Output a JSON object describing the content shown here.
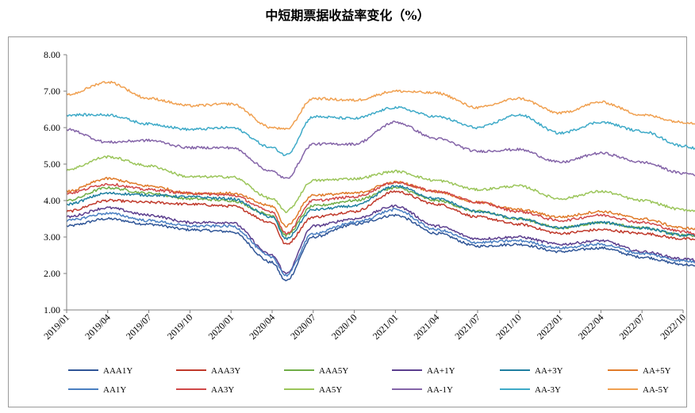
{
  "chart_data": {
    "type": "line",
    "title": "中短期票据收益率变化（%）",
    "xlabel": "",
    "ylabel": "",
    "ylim": [
      1.0,
      8.0
    ],
    "y_ticks": [
      "1.00",
      "2.00",
      "3.00",
      "4.00",
      "5.00",
      "6.00",
      "7.00",
      "8.00"
    ],
    "x_ticks": [
      "2019/01",
      "2019/04",
      "2019/07",
      "2019/10",
      "2020/01",
      "2020/04",
      "2020/07",
      "2020/10",
      "2021/01",
      "2021/04",
      "2021/07",
      "2021/10",
      "2022/01",
      "2022/04",
      "2022/07",
      "2022/10"
    ],
    "x": [
      "2019/01",
      "2019/04",
      "2019/07",
      "2019/10",
      "2020/01",
      "2020/04",
      "2020/05",
      "2020/07",
      "2020/10",
      "2021/01",
      "2021/04",
      "2021/07",
      "2021/10",
      "2022/01",
      "2022/04",
      "2022/07",
      "2022/10",
      "2022/12"
    ],
    "legend": "bottom",
    "grid": false,
    "series": [
      {
        "name": "AAA1Y",
        "color": "#2f5597",
        "values": [
          3.3,
          3.5,
          3.35,
          3.2,
          3.15,
          2.3,
          1.8,
          3.0,
          3.35,
          3.6,
          3.1,
          2.75,
          2.8,
          2.6,
          2.7,
          2.45,
          2.25,
          2.1
        ]
      },
      {
        "name": "AAA3Y",
        "color": "#c0392b",
        "values": [
          3.7,
          4.0,
          3.95,
          3.9,
          3.85,
          3.4,
          2.8,
          3.55,
          3.7,
          4.25,
          3.9,
          3.55,
          3.35,
          3.1,
          3.2,
          3.1,
          2.95,
          2.9
        ]
      },
      {
        "name": "AAA5Y",
        "color": "#70ad47",
        "values": [
          4.0,
          4.35,
          4.2,
          4.05,
          4.0,
          3.6,
          3.05,
          3.85,
          4.0,
          4.35,
          4.0,
          3.7,
          3.5,
          3.25,
          3.4,
          3.25,
          3.05,
          3.0
        ]
      },
      {
        "name": "AA+1Y",
        "color": "#5b3e8e",
        "values": [
          3.55,
          3.8,
          3.6,
          3.4,
          3.4,
          2.5,
          2.0,
          3.3,
          3.5,
          3.85,
          3.3,
          2.95,
          3.0,
          2.8,
          2.9,
          2.6,
          2.4,
          2.3
        ]
      },
      {
        "name": "AA+3Y",
        "color": "#1f7fa0",
        "values": [
          3.9,
          4.2,
          4.15,
          4.1,
          4.05,
          3.55,
          2.95,
          3.75,
          3.85,
          4.4,
          4.05,
          3.7,
          3.5,
          3.25,
          3.4,
          3.25,
          3.05,
          3.0
        ]
      },
      {
        "name": "AA+5Y",
        "color": "#e07b2a",
        "values": [
          4.25,
          4.6,
          4.4,
          4.2,
          4.2,
          3.85,
          3.3,
          4.15,
          4.2,
          4.5,
          4.25,
          3.95,
          3.75,
          3.55,
          3.7,
          3.5,
          3.25,
          3.15
        ]
      },
      {
        "name": "AA1Y",
        "color": "#4a7fc1",
        "values": [
          3.45,
          3.65,
          3.45,
          3.3,
          3.3,
          2.45,
          1.95,
          3.1,
          3.4,
          3.75,
          3.2,
          2.85,
          2.9,
          2.7,
          2.8,
          2.55,
          2.35,
          2.25
        ]
      },
      {
        "name": "AA3Y",
        "color": "#d04848",
        "values": [
          4.2,
          4.45,
          4.3,
          4.2,
          4.15,
          3.7,
          3.1,
          4.0,
          4.1,
          4.5,
          4.25,
          3.95,
          3.7,
          3.45,
          3.6,
          3.4,
          3.15,
          2.95
        ]
      },
      {
        "name": "AA5Y",
        "color": "#9bc55a",
        "values": [
          4.85,
          5.2,
          4.95,
          4.65,
          4.65,
          4.05,
          3.7,
          4.55,
          4.6,
          4.8,
          4.55,
          4.3,
          4.4,
          4.05,
          4.25,
          4.0,
          3.75,
          3.65
        ]
      },
      {
        "name": "AA-1Y",
        "color": "#8464a8",
        "values": [
          5.95,
          5.6,
          5.65,
          5.45,
          5.45,
          4.8,
          4.6,
          5.55,
          5.55,
          6.15,
          5.7,
          5.35,
          5.4,
          5.05,
          5.3,
          5.05,
          4.75,
          4.65
        ]
      },
      {
        "name": "AA-3Y",
        "color": "#3eaac8",
        "values": [
          6.35,
          6.35,
          6.1,
          5.95,
          6.0,
          5.45,
          5.25,
          6.3,
          6.25,
          6.55,
          6.3,
          6.0,
          6.35,
          5.85,
          6.15,
          5.9,
          5.5,
          5.3
        ]
      },
      {
        "name": "AA-5Y",
        "color": "#f0a050",
        "values": [
          6.9,
          7.25,
          6.8,
          6.6,
          6.65,
          6.0,
          5.95,
          6.8,
          6.75,
          7.0,
          6.95,
          6.55,
          6.8,
          6.4,
          6.7,
          6.35,
          6.15,
          6.05
        ]
      }
    ]
  }
}
